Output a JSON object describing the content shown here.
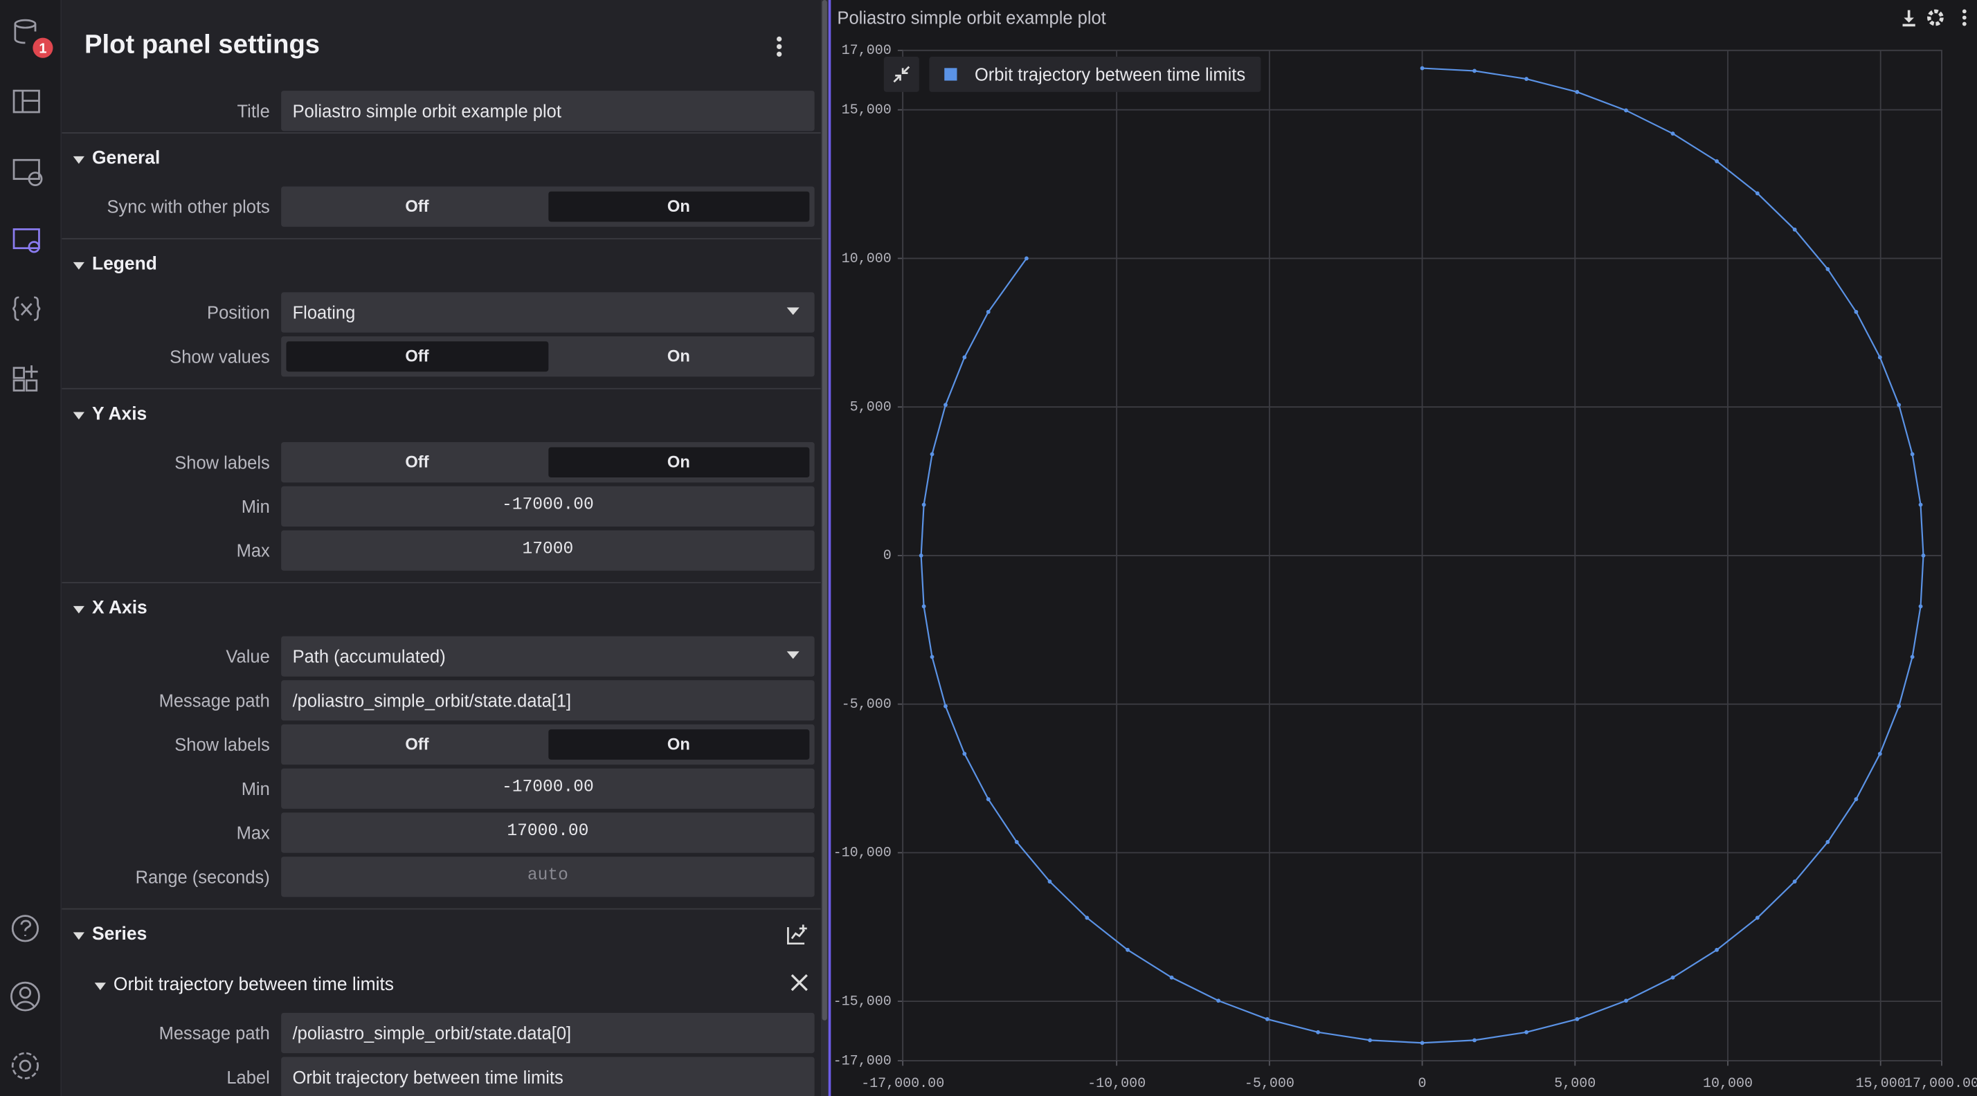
{
  "sidebar": {
    "badge": "1"
  },
  "settings": {
    "title": "Plot panel settings",
    "top": {
      "label": "Title",
      "input": "text",
      "value": "Poliastro simple orbit example plot"
    },
    "sections": [
      {
        "title": "General",
        "rows": [
          {
            "label": "Sync with other plots",
            "input": "toggle",
            "options": [
              "Off",
              "On"
            ],
            "selected": 1
          }
        ]
      },
      {
        "title": "Legend",
        "rows": [
          {
            "label": "Position",
            "input": "select",
            "value": "Floating"
          },
          {
            "label": "Show values",
            "input": "toggle",
            "options": [
              "Off",
              "On"
            ],
            "selected": 0
          }
        ]
      },
      {
        "title": "Y Axis",
        "rows": [
          {
            "label": "Show labels",
            "input": "toggle",
            "options": [
              "Off",
              "On"
            ],
            "selected": 1
          },
          {
            "label": "Min",
            "input": "number",
            "value": "-17000.00"
          },
          {
            "label": "Max",
            "input": "number",
            "value": "17000"
          }
        ]
      },
      {
        "title": "X Axis",
        "rows": [
          {
            "label": "Value",
            "input": "select",
            "value": "Path (accumulated)"
          },
          {
            "label": "Message path",
            "input": "text",
            "value": "/poliastro_simple_orbit/state.data[1]"
          },
          {
            "label": "Show labels",
            "input": "toggle",
            "options": [
              "Off",
              "On"
            ],
            "selected": 1
          },
          {
            "label": "Min",
            "input": "number",
            "value": "-17000.00"
          },
          {
            "label": "Max",
            "input": "number",
            "value": "17000.00"
          },
          {
            "label": "Range (seconds)",
            "input": "placeholder",
            "value": "auto"
          }
        ]
      },
      {
        "title": "Series",
        "rows": [],
        "subsections": [
          {
            "title": "Orbit trajectory between time limits",
            "rows": [
              {
                "label": "Message path",
                "input": "text",
                "value": "/poliastro_simple_orbit/state.data[0]"
              },
              {
                "label": "Label",
                "input": "text",
                "value": "Orbit trajectory between time limits"
              }
            ]
          }
        ]
      }
    ]
  },
  "chart_data": {
    "type": "line",
    "title": "Poliastro simple orbit example plot",
    "x": [
      0,
      1710,
      3410,
      5070,
      6670,
      8200,
      9640,
      10970,
      12190,
      13270,
      14200,
      14980,
      15600,
      16040,
      16310,
      16400,
      16310,
      16040,
      15600,
      14980,
      14200,
      13270,
      12190,
      10970,
      9640,
      8200,
      6670,
      5070,
      3410,
      1710,
      0,
      -1710,
      -3410,
      -5070,
      -6670,
      -8200,
      -9640,
      -10970,
      -12190,
      -13270,
      -14200,
      -14980,
      -15600,
      -16040,
      -16310,
      -16400,
      -16310,
      -16040,
      -15600,
      -14980,
      -14200,
      -12950
    ],
    "series": [
      {
        "name": "Orbit trajectory between time limits",
        "color": "#5b93e6",
        "values": [
          16400,
          16310,
          16040,
          15600,
          14980,
          14200,
          13270,
          12190,
          10970,
          9640,
          8200,
          6670,
          5070,
          3410,
          1710,
          0,
          -1710,
          -3410,
          -5070,
          -6670,
          -8200,
          -9640,
          -10970,
          -12190,
          -13270,
          -14200,
          -14980,
          -15600,
          -16040,
          -16310,
          -16400,
          -16310,
          -16040,
          -15600,
          -14980,
          -14200,
          -13270,
          -12190,
          -10970,
          -9640,
          -8200,
          -6670,
          -5070,
          -3410,
          -1710,
          0,
          1710,
          3410,
          5070,
          6670,
          8200,
          10000
        ]
      }
    ],
    "xlim": [
      -17000,
      17000
    ],
    "ylim": [
      -17000,
      17000
    ],
    "xticks": [
      {
        "value": -17000,
        "label": "-17,000.00"
      },
      {
        "value": -10000,
        "label": "-10,000"
      },
      {
        "value": -5000,
        "label": "-5,000"
      },
      0,
      {
        "value": 5000,
        "label": "5,000"
      },
      {
        "value": 10000,
        "label": "10,000"
      },
      {
        "value": 15000,
        "label": "15,000"
      },
      {
        "value": 17000,
        "label": "17,000.00"
      }
    ],
    "yticks": [
      {
        "value": 17000,
        "label": "17,000"
      },
      {
        "value": 15000,
        "label": "15,000"
      },
      {
        "value": 10000,
        "label": "10,000"
      },
      {
        "value": 5000,
        "label": "5,000"
      },
      0,
      {
        "value": -5000,
        "label": "-5,000"
      },
      {
        "value": -10000,
        "label": "-10,000"
      },
      {
        "value": -15000,
        "label": "-15,000"
      },
      {
        "value": -17000,
        "label": "-17,000"
      }
    ],
    "grid": true,
    "legend": "top-left"
  }
}
